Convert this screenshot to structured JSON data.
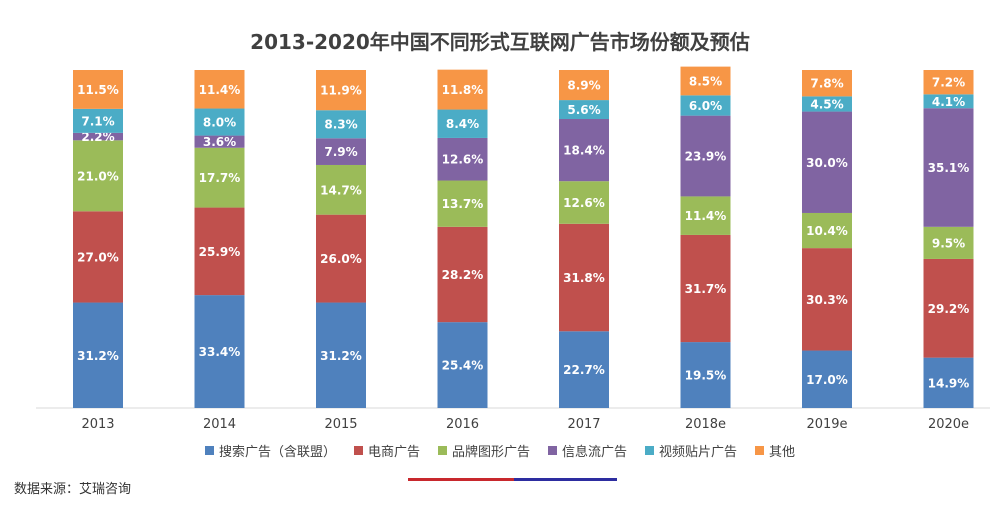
{
  "chart_data": {
    "type": "bar",
    "stacked": true,
    "percent_stacked": true,
    "title": "2013-2020年中国不同形式互联网广告市场份额及预估",
    "categories": [
      "2013",
      "2014",
      "2015",
      "2016",
      "2017",
      "2018e",
      "2019e",
      "2020e"
    ],
    "series": [
      {
        "name": "搜索广告（含联盟）",
        "color": "#4f81bd",
        "values": [
          31.2,
          33.4,
          31.2,
          25.4,
          22.7,
          19.5,
          17.0,
          14.9
        ]
      },
      {
        "name": "电商广告",
        "color": "#c0504d",
        "values": [
          27.0,
          25.9,
          26.0,
          28.2,
          31.8,
          31.7,
          30.3,
          29.2
        ]
      },
      {
        "name": "品牌图形广告",
        "color": "#9bbb59",
        "values": [
          21.0,
          17.7,
          14.7,
          13.7,
          12.6,
          11.4,
          10.4,
          9.5
        ]
      },
      {
        "name": "信息流广告",
        "color": "#8064a2",
        "values": [
          2.2,
          3.6,
          7.9,
          12.6,
          18.4,
          23.9,
          30.0,
          35.1
        ]
      },
      {
        "name": "视频贴片广告",
        "color": "#4bacc6",
        "values": [
          7.1,
          8.0,
          8.3,
          8.4,
          5.6,
          6.0,
          4.5,
          4.1
        ]
      },
      {
        "name": "其他",
        "color": "#f79646",
        "values": [
          11.5,
          11.4,
          11.9,
          11.8,
          8.9,
          8.5,
          7.8,
          7.2
        ]
      }
    ],
    "value_format": "%",
    "ylim": [
      0,
      100
    ],
    "legend_position": "bottom",
    "grid": false
  },
  "footer": {
    "source": "数据来源：艾瑞咨询",
    "accent_colors": [
      "#c8282d",
      "#2d2da0"
    ]
  }
}
